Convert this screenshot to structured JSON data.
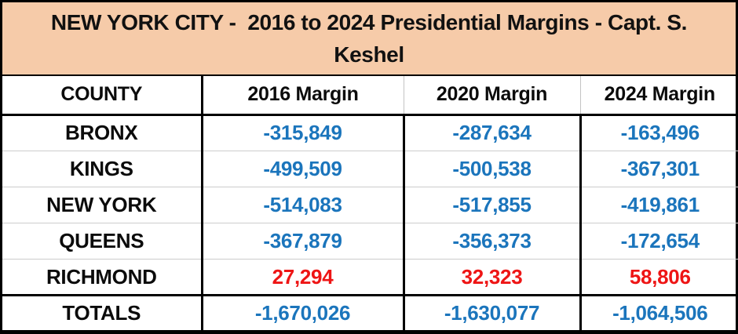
{
  "title": {
    "lines": [
      "NEW YORK CITY -  2016 to 2024 Presidential Margins - Capt. S.",
      "Keshel"
    ],
    "full": "NEW YORK CITY - 2016 to 2024 Presidential Margins - Capt. S. Keshel"
  },
  "colors": {
    "banner_bg": "#F6CBA9",
    "negative_value": "#1B75BC",
    "positive_value": "#EE1515",
    "border": "#000000"
  },
  "table": {
    "columns": [
      "COUNTY",
      "2016 Margin",
      "2020 Margin",
      "2024 Margin"
    ],
    "rows": [
      {
        "county": "BRONX",
        "margins": [
          "-315,849",
          "-287,634",
          "-163,496"
        ],
        "trend": "negative"
      },
      {
        "county": "KINGS",
        "margins": [
          "-499,509",
          "-500,538",
          "-367,301"
        ],
        "trend": "negative"
      },
      {
        "county": "NEW YORK",
        "margins": [
          "-514,083",
          "-517,855",
          "-419,861"
        ],
        "trend": "negative"
      },
      {
        "county": "QUEENS",
        "margins": [
          "-367,879",
          "-356,373",
          "-172,654"
        ],
        "trend": "negative"
      },
      {
        "county": "RICHMOND",
        "margins": [
          "27,294",
          "32,323",
          "58,806"
        ],
        "trend": "positive"
      }
    ],
    "totals": {
      "label": "TOTALS",
      "margins": [
        "-1,670,026",
        "-1,630,077",
        "-1,064,506"
      ],
      "trend": "negative"
    }
  },
  "chart_data": {
    "type": "table",
    "title": "NEW YORK CITY - 2016 to 2024 Presidential Margins - Capt. S. Keshel",
    "columns": [
      "COUNTY",
      "2016 Margin",
      "2020 Margin",
      "2024 Margin"
    ],
    "rows": [
      {
        "county": "BRONX",
        "values": [
          -315849,
          -287634,
          -163496
        ]
      },
      {
        "county": "KINGS",
        "values": [
          -499509,
          -500538,
          -367301
        ]
      },
      {
        "county": "NEW YORK",
        "values": [
          -514083,
          -517855,
          -419861
        ]
      },
      {
        "county": "QUEENS",
        "values": [
          -367879,
          -356373,
          -172654
        ]
      },
      {
        "county": "RICHMOND",
        "values": [
          27294,
          32323,
          58806
        ]
      },
      {
        "county": "TOTALS",
        "values": [
          -1670026,
          -1630077,
          -1064506
        ]
      }
    ],
    "legend": "blue = Democrat-won (negative Republican margin), red = Republican-won (positive margin)"
  }
}
